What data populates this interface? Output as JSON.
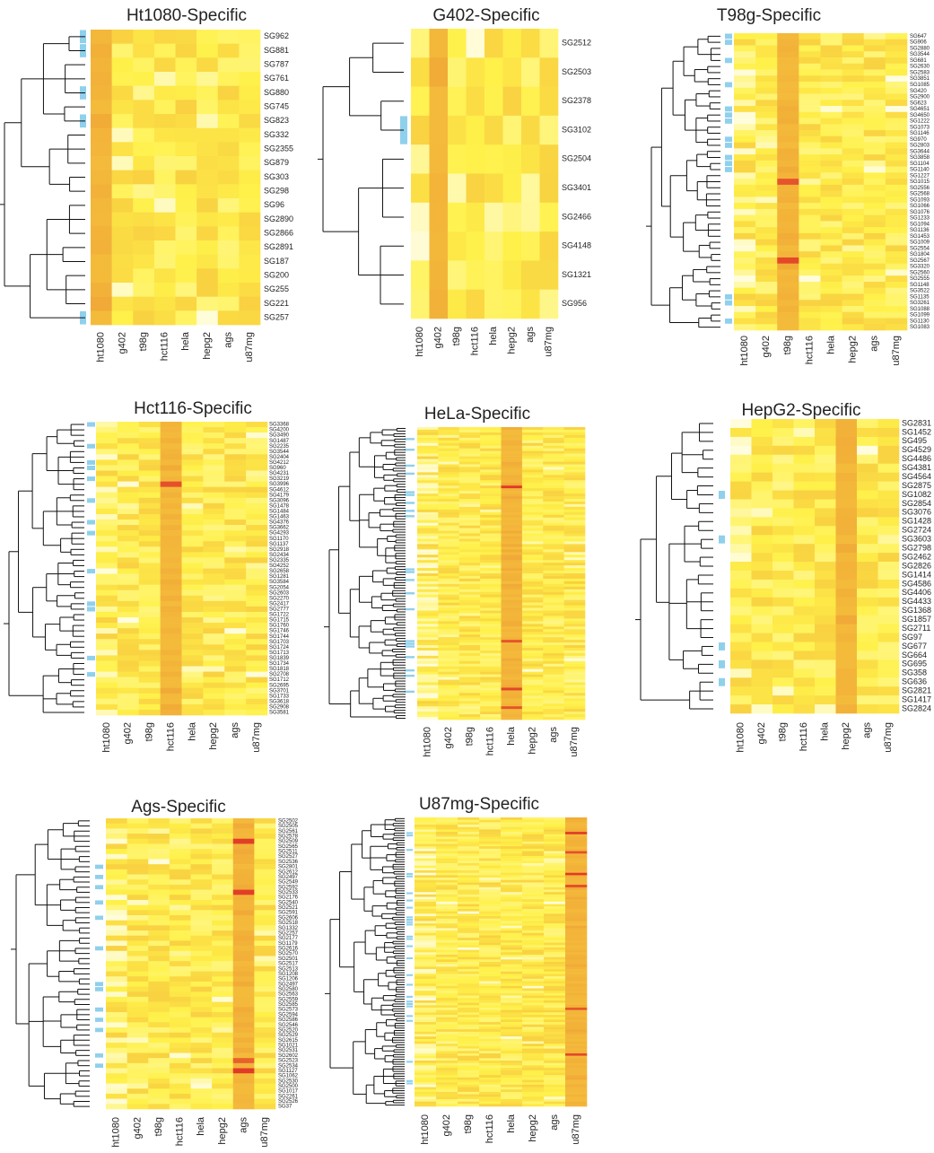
{
  "columns": [
    "ht1080",
    "g402",
    "t98g",
    "hct116",
    "hela",
    "hepg2",
    "ags",
    "u87mg"
  ],
  "colors": {
    "low": "#fffde0",
    "mid": "#fff14a",
    "high": "#f2b038",
    "peak": "#e13a26",
    "highlight": "#8fd0ec",
    "tree": "#111111"
  },
  "chart_data": [
    {
      "type": "heatmap",
      "title": "Ht1080-Specific",
      "specific_column": "ht1080",
      "rows": [
        "SG962",
        "SG881",
        "SG787",
        "SG761",
        "SG880",
        "SG745",
        "SG823",
        "SG332",
        "SG2355",
        "SG879",
        "SG303",
        "SG298",
        "SG96",
        "SG2890",
        "SG2866",
        "SG2891",
        "SG187",
        "SG200",
        "SG255",
        "SG221",
        "SG257"
      ],
      "highlighted_rows": [
        "SG962",
        "SG881",
        "SG880",
        "SG823",
        "SG257"
      ]
    },
    {
      "type": "heatmap",
      "title": "G402-Specific",
      "specific_column": "g402",
      "rows": [
        "SG2512",
        "SG2503",
        "SG2378",
        "SG3102",
        "SG2504",
        "SG3401",
        "SG2466",
        "SG4148",
        "SG1321",
        "SG956"
      ],
      "highlighted_rows": [
        "SG3102"
      ]
    },
    {
      "type": "heatmap",
      "title": "T98g-Specific",
      "specific_column": "t98g",
      "rows": [
        "SG647",
        "SG906",
        "SG2880",
        "SG3544",
        "SG681",
        "SG2630",
        "SG2583",
        "SG3851",
        "SG1085",
        "SG420",
        "SG2900",
        "SG623",
        "SG4651",
        "SG4650",
        "SG1222",
        "SG1073",
        "SG1146",
        "SG970",
        "SG2803",
        "SG3644",
        "SG3858",
        "SG1104",
        "SG1140",
        "SG1227",
        "SG1015",
        "SG2556",
        "SG2568",
        "SG1093",
        "SG1066",
        "SG1076",
        "SG1233",
        "SG1094",
        "SG1136",
        "SG1453",
        "SG1009",
        "SG2554",
        "SG1804",
        "SG2567",
        "SG3320",
        "SG2560",
        "SG2555",
        "SG1148",
        "SG3522",
        "SG1135",
        "SG3261",
        "SG1088",
        "SG1099",
        "SG1130",
        "SG1083"
      ],
      "highlighted_rows": [
        "SG647",
        "SG906",
        "SG681",
        "SG1085",
        "SG4651",
        "SG4650",
        "SG1222",
        "SG970",
        "SG2803",
        "SG3858",
        "SG1104",
        "SG1140",
        "SG1135",
        "SG3261",
        "SG1130"
      ]
    },
    {
      "type": "heatmap",
      "title": "Hct116-Specific",
      "specific_column": "hct116",
      "rows": [
        "SG3368",
        "SG4200",
        "SG3490",
        "SG1487",
        "SG2235",
        "SG3544",
        "SG2404",
        "SG4212",
        "SG960",
        "SG4231",
        "SG3219",
        "SG3996",
        "SG4612",
        "SG4179",
        "SG3096",
        "SG1478",
        "SG1484",
        "SG1463",
        "SG4376",
        "SG3662",
        "SG4293",
        "SG1170",
        "SG1137",
        "SG2918",
        "SG2434",
        "SG2335",
        "SG4252",
        "SG2658",
        "SG1281",
        "SG3584",
        "SG2054",
        "SG2603",
        "SG2270",
        "SG2417",
        "SG2777",
        "SG1722",
        "SG1715",
        "SG1760",
        "SG1746",
        "SG1744",
        "SG1703",
        "SG1724",
        "SG1713",
        "SG1839",
        "SG1734",
        "SG1818",
        "SG2708",
        "SG1712",
        "SG2695",
        "SG3701",
        "SG1733",
        "SG3618",
        "SG2908",
        "SG3581"
      ],
      "highlighted_rows": [
        "SG3368",
        "SG2235",
        "SG4212",
        "SG960",
        "SG3219",
        "SG3096",
        "SG4376",
        "SG4293",
        "SG2658",
        "SG2777",
        "SG2417",
        "SG1839",
        "SG2708"
      ]
    },
    {
      "type": "heatmap",
      "title": "HeLa-Specific",
      "specific_column": "hela",
      "rows": [],
      "highlighted_rows": []
    },
    {
      "type": "heatmap",
      "title": "HepG2-Specific",
      "specific_column": "hepg2",
      "rows": [
        "SG2831",
        "SG1452",
        "SG495",
        "SG4529",
        "SG4486",
        "SG4381",
        "SG4564",
        "SG2875",
        "SG1082",
        "SG2854",
        "SG3076",
        "SG1428",
        "SG2724",
        "SG3603",
        "SG2798",
        "SG2462",
        "SG2826",
        "SG1414",
        "SG4586",
        "SG4406",
        "SG4433",
        "SG1368",
        "SG1857",
        "SG2711",
        "SG97",
        "SG677",
        "SG664",
        "SG695",
        "SG358",
        "SG636",
        "SG2821",
        "SG1417",
        "SG2824"
      ],
      "highlighted_rows": [
        "SG1082",
        "SG3603",
        "SG677",
        "SG695",
        "SG636"
      ]
    },
    {
      "type": "heatmap",
      "title": "Ags-Specific",
      "specific_column": "ags",
      "rows": [
        "SG2502",
        "SG2505",
        "SG2561",
        "SG2578",
        "SG2509",
        "SG2565",
        "SG2511",
        "SG2527",
        "SG2536",
        "SG2801",
        "SG2612",
        "SG2497",
        "SG2549",
        "SG2592",
        "SG2533",
        "SG2176",
        "SG2540",
        "SG2521",
        "SG2591",
        "SG2606",
        "SG2518",
        "SG1332",
        "SG2257",
        "SG2177",
        "SG1179",
        "SG2616",
        "SG2570",
        "SG2501",
        "SG2517",
        "SG2513",
        "SG1208",
        "SG1206",
        "SG2497",
        "SG2580",
        "SG2563",
        "SG2559",
        "SG2585",
        "SG2573",
        "SG2594",
        "SG2586",
        "SG2546",
        "SG2520",
        "SG2529",
        "SG2615",
        "SG1021",
        "SG2531",
        "SG2602",
        "SG2523",
        "SG2534",
        "SG1127",
        "SG1062",
        "SG2530",
        "SG2500",
        "SG1017",
        "SG2261",
        "SG2526",
        "SG37"
      ],
      "highlighted_rows": [
        "SG2801",
        "SG2497",
        "SG2592",
        "SG2540",
        "SG2606",
        "SG2616",
        "SG2580",
        "SG2573",
        "SG2586",
        "SG2520",
        "SG2602",
        "SG2534"
      ]
    },
    {
      "type": "heatmap",
      "title": "U87mg-Specific",
      "specific_column": "u87mg",
      "rows": [],
      "highlighted_rows": []
    }
  ]
}
